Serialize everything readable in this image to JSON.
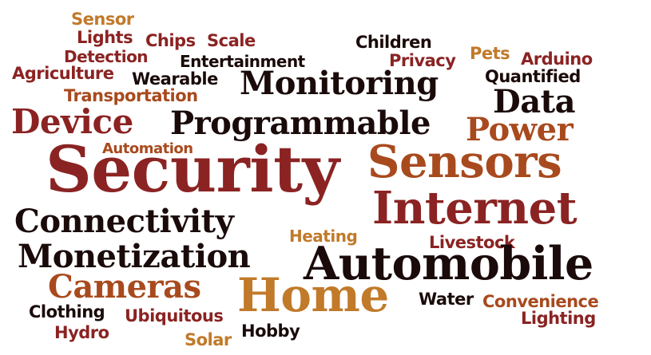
{
  "colors": {
    "black": "#1a0a0a",
    "maroon": "#8b2323",
    "rust": "#a84a1e",
    "ochre": "#c17a2a"
  },
  "words": [
    {
      "text": "Sensor",
      "color": "ochre"
    },
    {
      "text": "Lights",
      "color": "maroon"
    },
    {
      "text": "Chips",
      "color": "maroon"
    },
    {
      "text": "Scale",
      "color": "maroon"
    },
    {
      "text": "Detection",
      "color": "maroon"
    },
    {
      "text": "Agriculture",
      "color": "maroon"
    },
    {
      "text": "Entertainment",
      "color": "black"
    },
    {
      "text": "Wearable",
      "color": "black"
    },
    {
      "text": "Transportation",
      "color": "rust"
    },
    {
      "text": "Children",
      "color": "black"
    },
    {
      "text": "Privacy",
      "color": "maroon"
    },
    {
      "text": "Pets",
      "color": "ochre"
    },
    {
      "text": "Arduino",
      "color": "maroon"
    },
    {
      "text": "Quantified",
      "color": "black"
    },
    {
      "text": "Monitoring",
      "color": "black"
    },
    {
      "text": "Data",
      "color": "black"
    },
    {
      "text": "Device",
      "color": "maroon"
    },
    {
      "text": "Programmable",
      "color": "black"
    },
    {
      "text": "Power",
      "color": "rust"
    },
    {
      "text": "Automation",
      "color": "rust"
    },
    {
      "text": "Security",
      "color": "maroon"
    },
    {
      "text": "Sensors",
      "color": "rust"
    },
    {
      "text": "Internet",
      "color": "maroon"
    },
    {
      "text": "Connectivity",
      "color": "black"
    },
    {
      "text": "Heating",
      "color": "ochre"
    },
    {
      "text": "Livestock",
      "color": "maroon"
    },
    {
      "text": "Monetization",
      "color": "black"
    },
    {
      "text": "Automobile",
      "color": "black"
    },
    {
      "text": "Cameras",
      "color": "rust"
    },
    {
      "text": "Home",
      "color": "ochre"
    },
    {
      "text": "Clothing",
      "color": "black"
    },
    {
      "text": "Ubiquitous",
      "color": "maroon"
    },
    {
      "text": "Water",
      "color": "black"
    },
    {
      "text": "Convenience",
      "color": "rust"
    },
    {
      "text": "Hydro",
      "color": "maroon"
    },
    {
      "text": "Hobby",
      "color": "black"
    },
    {
      "text": "Lighting",
      "color": "maroon"
    },
    {
      "text": "Solar",
      "color": "ochre"
    }
  ]
}
